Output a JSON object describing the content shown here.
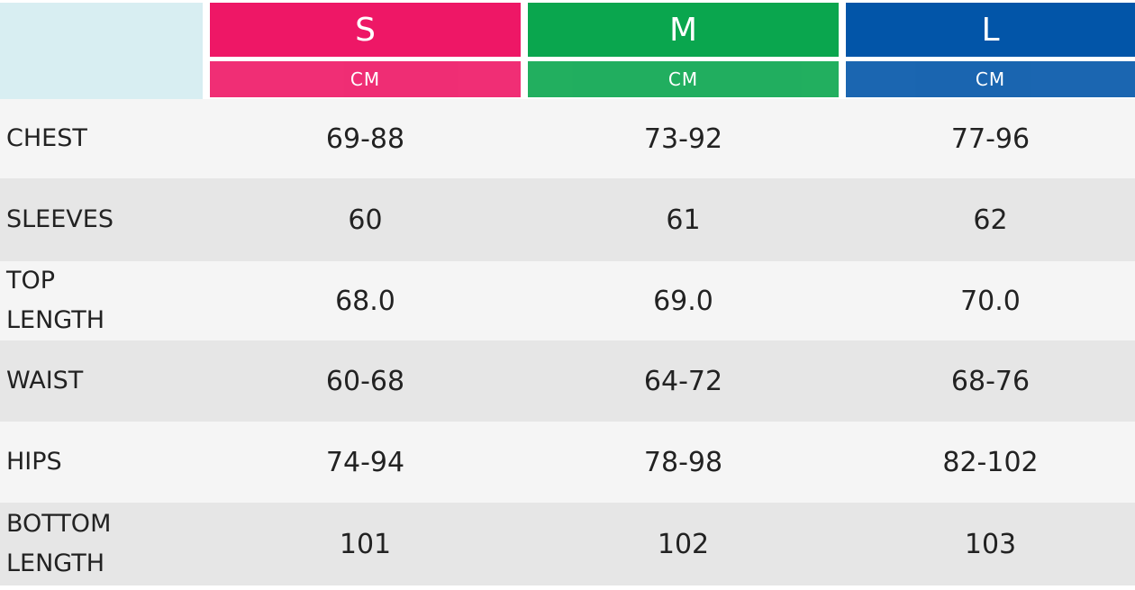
{
  "header": {
    "sizes": [
      {
        "size": "S",
        "unit": "CM",
        "color": "#ee1766"
      },
      {
        "size": "M",
        "unit": "CM",
        "color": "#0aa64e"
      },
      {
        "size": "L",
        "unit": "CM",
        "color": "#0255a8"
      }
    ]
  },
  "table": {
    "rows": [
      {
        "label": "CHEST",
        "values": [
          "69-88",
          "73-92",
          "77-96"
        ]
      },
      {
        "label": "SLEEVES",
        "values": [
          "60",
          "61",
          "62"
        ]
      },
      {
        "label": "TOP LENGTH",
        "values": [
          "68.0",
          "69.0",
          "70.0"
        ]
      },
      {
        "label": "WAIST",
        "values": [
          "60-68",
          "64-72",
          "68-76"
        ]
      },
      {
        "label": "HIPS",
        "values": [
          "74-94",
          "78-98",
          "82-102"
        ]
      },
      {
        "label": "BOTTOM LENGTH",
        "values": [
          "101",
          "102",
          "103"
        ]
      }
    ]
  }
}
